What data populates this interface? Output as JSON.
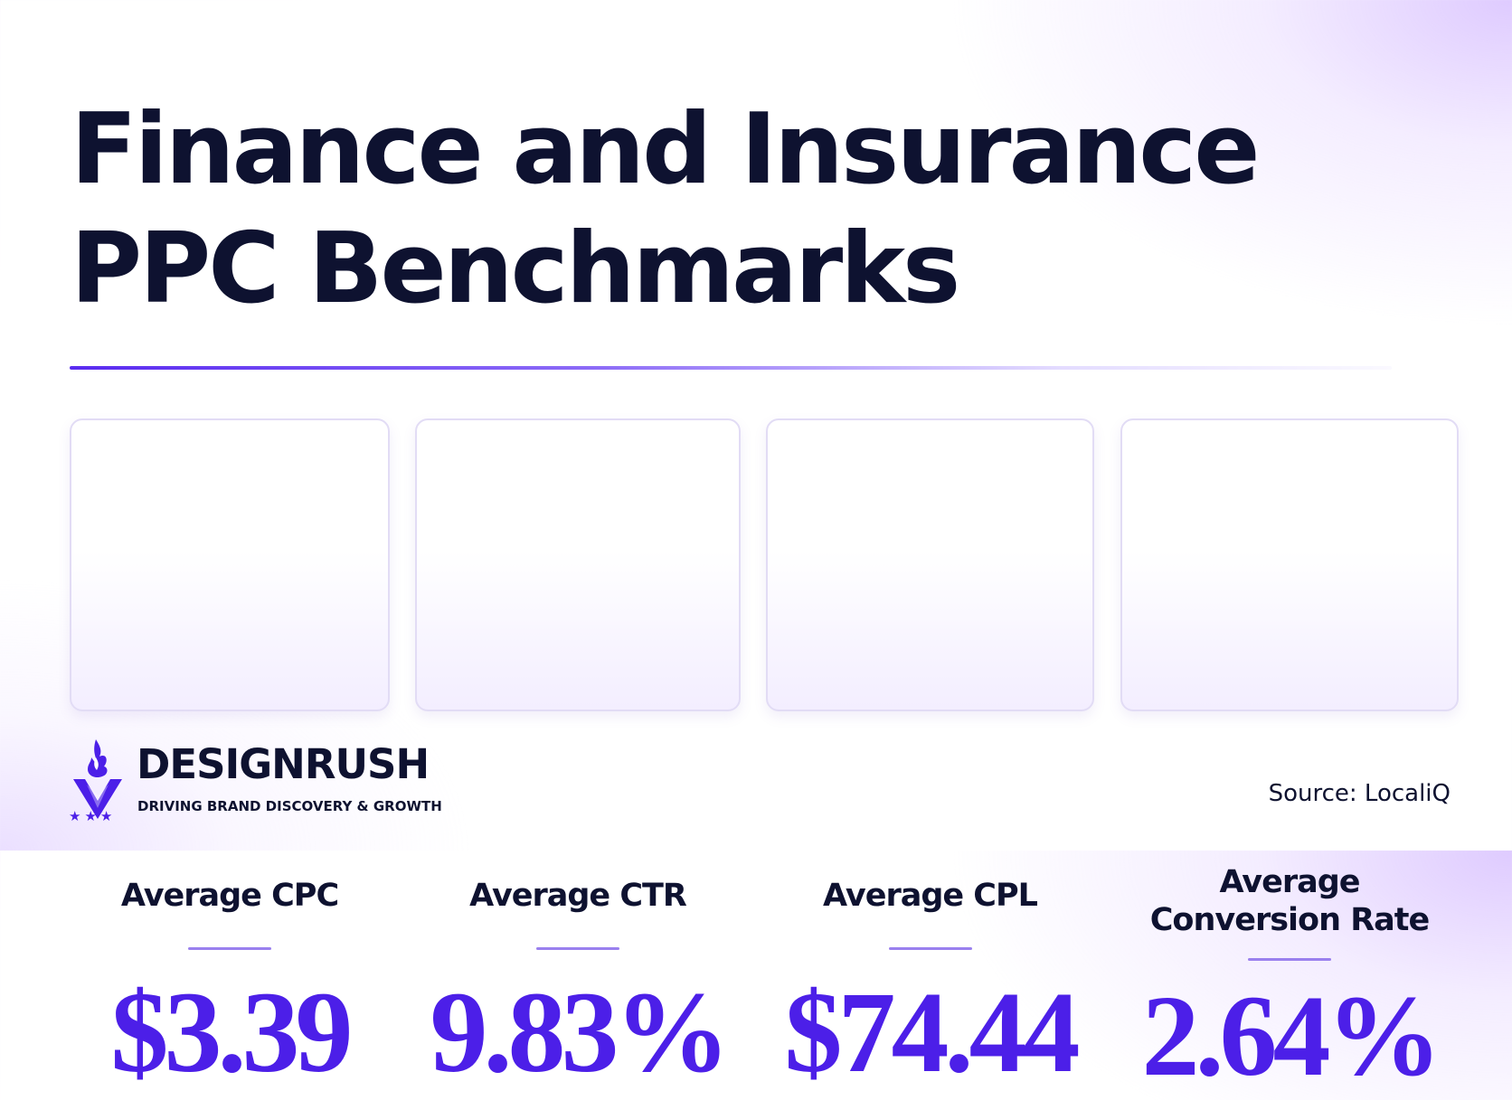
{
  "title": {
    "line1": "Finance and Insurance",
    "line2": "PPC Benchmarks"
  },
  "cards": [
    {
      "label_lines": [
        "Average CPC"
      ],
      "value": "$3.39"
    },
    {
      "label_lines": [
        "Average CTR"
      ],
      "value": "9.83%"
    },
    {
      "label_lines": [
        "Average CPL"
      ],
      "value": "$74.44"
    },
    {
      "label_lines": [
        "Average",
        "Conversion Rate"
      ],
      "value": "2.64%"
    }
  ],
  "brand": {
    "name": "DESIGNRUSH",
    "tagline": "DRIVING BRAND DISCOVERY & GROWTH"
  },
  "source": "Source: LocaliQ",
  "colors": {
    "title_text": "#0e1230",
    "accent": "#4c1fe8",
    "card_border": "#e2dcf5"
  },
  "icons": [
    "designrush-logo-icon"
  ]
}
